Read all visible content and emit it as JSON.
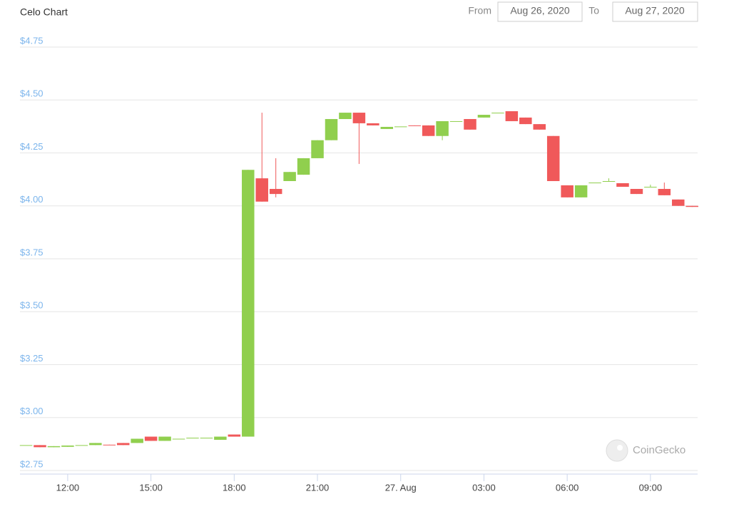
{
  "chart_data": {
    "type": "candlestick",
    "title": "Celo Chart",
    "range": {
      "from_label": "From",
      "from": "Aug 26, 2020",
      "to_label": "To",
      "to": "Aug 27, 2020"
    },
    "watermark": "CoinGecko",
    "up_color": "#90cf4e",
    "down_color": "#f0595a",
    "grid": true,
    "xlim": [
      10.28,
      34.7
    ],
    "xticks": [
      {
        "value": 12,
        "label": "12:00"
      },
      {
        "value": 15,
        "label": "15:00"
      },
      {
        "value": 18,
        "label": "18:00"
      },
      {
        "value": 21,
        "label": "21:00"
      },
      {
        "value": 24,
        "label": "27. Aug"
      },
      {
        "value": 27,
        "label": "03:00"
      },
      {
        "value": 30,
        "label": "06:00"
      },
      {
        "value": 33,
        "label": "09:00"
      }
    ],
    "ylim": [
      2.75,
      4.75
    ],
    "yticks": [
      {
        "value": 2.75,
        "label": "$2.75"
      },
      {
        "value": 3.0,
        "label": "$3.00"
      },
      {
        "value": 3.25,
        "label": "$3.25"
      },
      {
        "value": 3.5,
        "label": "$3.50"
      },
      {
        "value": 3.75,
        "label": "$3.75"
      },
      {
        "value": 4.0,
        "label": "$4.00"
      },
      {
        "value": 4.25,
        "label": "$4.25"
      },
      {
        "value": 4.5,
        "label": "$4.50"
      },
      {
        "value": 4.75,
        "label": "$4.75"
      }
    ],
    "x": [
      10.5,
      11,
      11.5,
      12,
      12.5,
      13,
      13.5,
      14,
      14.5,
      15,
      15.5,
      16,
      16.5,
      17,
      17.5,
      18,
      18.5,
      19,
      19.5,
      20,
      20.5,
      21,
      21.5,
      22,
      22.5,
      23,
      23.5,
      24,
      24.5,
      25,
      25.5,
      26,
      26.5,
      27,
      27.5,
      28,
      28.5,
      29,
      29.5,
      30,
      30.5,
      31,
      31.5,
      32,
      32.5,
      33,
      33.5,
      34,
      34.5
    ],
    "open": [
      2.87,
      2.87,
      2.86,
      2.862,
      2.87,
      2.87,
      2.872,
      2.88,
      2.88,
      2.91,
      2.89,
      2.9,
      2.905,
      2.905,
      2.895,
      2.92,
      2.91,
      4.13,
      4.08,
      4.117,
      4.147,
      4.225,
      4.31,
      4.41,
      4.44,
      4.39,
      4.363,
      4.375,
      4.38,
      4.38,
      4.33,
      4.4,
      4.41,
      4.417,
      4.44,
      4.447,
      4.417,
      4.386,
      4.33,
      4.097,
      4.04,
      4.11,
      4.117,
      4.107,
      4.08,
      4.09,
      4.08,
      4.03,
      4.0
    ],
    "high": [
      2.87,
      2.87,
      2.865,
      2.868,
      2.87,
      2.88,
      2.872,
      2.88,
      2.9,
      2.91,
      2.91,
      2.9,
      2.905,
      2.905,
      2.91,
      2.92,
      4.17,
      4.44,
      4.225,
      4.16,
      4.225,
      4.31,
      4.41,
      4.44,
      4.44,
      4.39,
      4.373,
      4.375,
      4.38,
      4.38,
      4.4,
      4.4,
      4.41,
      4.43,
      4.44,
      4.447,
      4.417,
      4.386,
      4.33,
      4.097,
      4.097,
      4.11,
      4.13,
      4.107,
      4.08,
      4.1,
      4.11,
      4.03,
      4.0
    ],
    "low": [
      2.87,
      2.86,
      2.86,
      2.862,
      2.87,
      2.87,
      2.87,
      2.87,
      2.88,
      2.89,
      2.89,
      2.9,
      2.905,
      2.905,
      2.895,
      2.91,
      2.91,
      4.02,
      4.04,
      4.117,
      4.147,
      4.225,
      4.31,
      4.41,
      4.198,
      4.38,
      4.363,
      4.375,
      4.378,
      4.33,
      4.31,
      4.4,
      4.36,
      4.417,
      4.44,
      4.4,
      4.386,
      4.36,
      4.117,
      4.04,
      4.04,
      4.11,
      4.117,
      4.09,
      4.056,
      4.09,
      4.05,
      4.0,
      3.995
    ],
    "close": [
      2.87,
      2.86,
      2.865,
      2.868,
      2.87,
      2.88,
      2.87,
      2.87,
      2.9,
      2.89,
      2.91,
      2.9,
      2.905,
      2.905,
      2.91,
      2.91,
      4.17,
      4.02,
      4.056,
      4.16,
      4.225,
      4.31,
      4.41,
      4.44,
      4.39,
      4.38,
      4.373,
      4.375,
      4.378,
      4.33,
      4.4,
      4.4,
      4.36,
      4.43,
      4.44,
      4.4,
      4.386,
      4.36,
      4.117,
      4.04,
      4.097,
      4.11,
      4.117,
      4.09,
      4.056,
      4.09,
      4.05,
      4.0,
      3.995
    ]
  }
}
